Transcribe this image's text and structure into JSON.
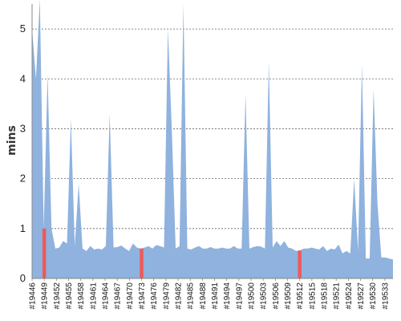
{
  "chart_data": {
    "type": "area",
    "title": "",
    "xlabel": "",
    "ylabel": "mins",
    "ylim": [
      0,
      5.5
    ],
    "yticks": [
      0,
      1,
      2,
      3,
      4,
      5
    ],
    "grid": true,
    "area_color": "#8fb2de",
    "highlight_color": "#ee5a5a",
    "x_start": 19446,
    "x_end": 19535,
    "x_tick_labels": [
      "#19446",
      "#19449",
      "#19452",
      "#19455",
      "#19458",
      "#19461",
      "#19464",
      "#19467",
      "#19470",
      "#19473",
      "#19476",
      "#19479",
      "#19482",
      "#19485",
      "#19488",
      "#19491",
      "#19494",
      "#19497",
      "#19500",
      "#19503",
      "#19506",
      "#19509",
      "#19512",
      "#19515",
      "#19518",
      "#19521",
      "#19524",
      "#19527",
      "#19530",
      "#19533"
    ],
    "values": [
      5.0,
      4.0,
      5.6,
      1.0,
      4.1,
      1.0,
      0.6,
      0.62,
      0.75,
      0.7,
      3.2,
      0.65,
      1.9,
      0.6,
      0.55,
      0.65,
      0.58,
      0.6,
      0.58,
      0.65,
      3.3,
      0.62,
      0.63,
      0.66,
      0.6,
      0.55,
      0.7,
      0.62,
      0.6,
      0.62,
      0.65,
      0.6,
      0.67,
      0.65,
      0.62,
      5.0,
      3.0,
      0.6,
      0.65,
      5.5,
      0.6,
      0.58,
      0.62,
      0.65,
      0.6,
      0.6,
      0.63,
      0.6,
      0.6,
      0.62,
      0.6,
      0.6,
      0.65,
      0.6,
      0.6,
      3.7,
      0.6,
      0.63,
      0.65,
      0.64,
      0.6,
      4.35,
      0.62,
      0.75,
      0.65,
      0.75,
      0.62,
      0.6,
      0.55,
      0.56,
      0.6,
      0.6,
      0.62,
      0.6,
      0.58,
      0.65,
      0.55,
      0.6,
      0.58,
      0.68,
      0.5,
      0.55,
      0.5,
      2.0,
      0.55,
      4.3,
      0.4,
      0.4,
      3.8,
      1.5,
      0.42,
      0.42,
      0.4,
      0.38
    ],
    "highlight_x": [
      19449,
      19473,
      19512
    ]
  }
}
